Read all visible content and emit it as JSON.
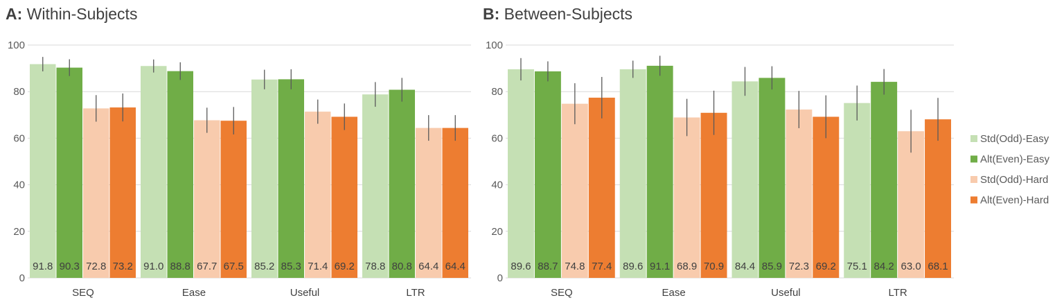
{
  "chart_data": [
    {
      "type": "bar",
      "panel_letter": "A:",
      "title": "Within-Subjects",
      "categories": [
        "SEQ",
        "Ease",
        "Useful",
        "LTR"
      ],
      "ylim": [
        0,
        100
      ],
      "yticks": [
        0,
        20,
        40,
        60,
        80,
        100
      ],
      "grid": true,
      "series": [
        {
          "name": "Std(Odd)-Easy",
          "color": "#C5E0B4",
          "values": [
            91.8,
            91.0,
            85.2,
            78.8
          ],
          "error": [
            3.1,
            2.8,
            4.2,
            5.3
          ]
        },
        {
          "name": "Alt(Even)-Easy",
          "color": "#70AD47",
          "values": [
            90.3,
            88.8,
            85.3,
            80.8
          ],
          "error": [
            3.6,
            3.8,
            4.3,
            5.1
          ]
        },
        {
          "name": "Std(Odd)-Hard",
          "color": "#F8CBAD",
          "values": [
            72.8,
            67.7,
            71.4,
            64.4
          ],
          "error": [
            5.7,
            5.4,
            5.2,
            5.5
          ]
        },
        {
          "name": "Alt(Even)-Hard",
          "color": "#ED7D31",
          "values": [
            73.2,
            67.5,
            69.2,
            64.4
          ],
          "error": [
            6.0,
            5.9,
            5.7,
            5.5
          ]
        }
      ],
      "value_labels": [
        [
          "91.8",
          "91.0",
          "85.2",
          "78.8"
        ],
        [
          "90.3",
          "88.8",
          "85.3",
          "80.8"
        ],
        [
          "72.8",
          "67.7",
          "71.4",
          "64.4"
        ],
        [
          "73.2",
          "67.5",
          "69.2",
          "64.4"
        ]
      ]
    },
    {
      "type": "bar",
      "panel_letter": "B:",
      "title": "Between-Subjects",
      "categories": [
        "SEQ",
        "Ease",
        "Useful",
        "LTR"
      ],
      "ylim": [
        0,
        100
      ],
      "yticks": [
        0,
        20,
        40,
        60,
        80,
        100
      ],
      "grid": true,
      "legend_position": "right",
      "series": [
        {
          "name": "Std(Odd)-Easy",
          "color": "#C5E0B4",
          "values": [
            89.6,
            89.6,
            84.4,
            75.1
          ],
          "error": [
            4.8,
            3.7,
            6.2,
            7.5
          ]
        },
        {
          "name": "Alt(Even)-Easy",
          "color": "#70AD47",
          "values": [
            88.7,
            91.1,
            85.9,
            84.2
          ],
          "error": [
            4.3,
            4.3,
            5.0,
            5.5
          ]
        },
        {
          "name": "Std(Odd)-Hard",
          "color": "#F8CBAD",
          "values": [
            74.8,
            68.9,
            72.3,
            63.0
          ],
          "error": [
            8.8,
            8.0,
            8.0,
            9.2
          ]
        },
        {
          "name": "Alt(Even)-Hard",
          "color": "#ED7D31",
          "values": [
            77.4,
            70.9,
            69.2,
            68.1
          ],
          "error": [
            8.9,
            9.5,
            9.2,
            9.2
          ]
        }
      ],
      "value_labels": [
        [
          "89.6",
          "89.6",
          "84.4",
          "75.1"
        ],
        [
          "88.7",
          "91.1",
          "85.9",
          "84.2"
        ],
        [
          "74.8",
          "68.9",
          "72.3",
          "63.0"
        ],
        [
          "77.4",
          "70.9",
          "69.2",
          "68.1"
        ]
      ]
    }
  ],
  "legend": [
    "Std(Odd)-Easy",
    "Alt(Even)-Easy",
    "Std(Odd)-Hard",
    "Alt(Even)-Hard"
  ]
}
